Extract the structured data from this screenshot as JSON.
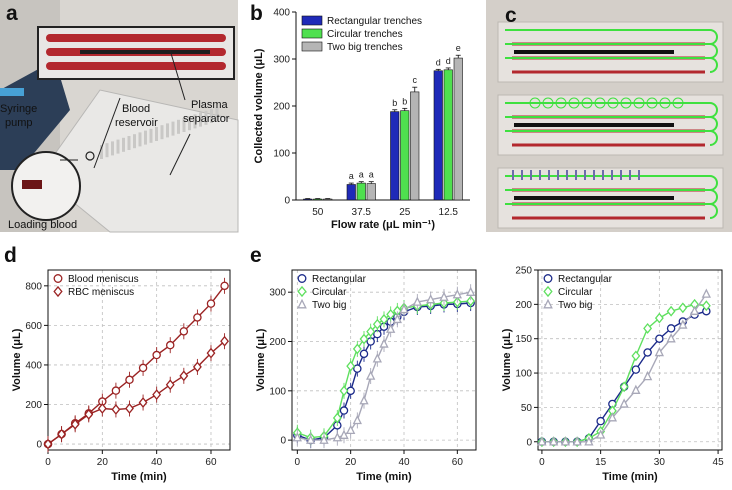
{
  "panels": {
    "a": "a",
    "b": "b",
    "c": "c",
    "d": "d",
    "e": "e"
  },
  "photo_a": {
    "labels": {
      "syringe_pump": [
        "Syringe",
        "pump"
      ],
      "blood_reservoir": [
        "Blood",
        "reservoir"
      ],
      "plasma_separator": [
        "Plasma",
        "separator"
      ],
      "loading_blood": "Loading blood"
    }
  },
  "colors": {
    "blue": "#1f2ab8",
    "green": "#4fe04f",
    "gray": "#b5b5b5",
    "darkred": "#9b2323",
    "navy": "#1b2a8a",
    "lightgreen": "#5fe05f",
    "lightgray": "#a8a8b8"
  },
  "chart_data": [
    {
      "id": "b",
      "type": "bar",
      "title": "",
      "xlabel": "Flow rate (μL min⁻¹)",
      "ylabel": "Collected volume (μL)",
      "ylim": [
        0,
        400
      ],
      "yticks": [
        "0",
        "100",
        "200",
        "300",
        "400"
      ],
      "categories": [
        "50",
        "37.5",
        "25",
        "12.5"
      ],
      "series": [
        {
          "name": "Rectangular trenches",
          "values": [
            2,
            33,
            188,
            275
          ],
          "errors": [
            1,
            3,
            4,
            3
          ],
          "letters": [
            "",
            "a",
            "b",
            "d"
          ]
        },
        {
          "name": "Circular trenches",
          "values": [
            2,
            36,
            190,
            277
          ],
          "errors": [
            1,
            3,
            5,
            4
          ],
          "letters": [
            "",
            "a",
            "b",
            "d"
          ]
        },
        {
          "name": "Two big trenches",
          "values": [
            2,
            35,
            230,
            302
          ],
          "errors": [
            1,
            4,
            10,
            6
          ],
          "letters": [
            "",
            "a",
            "c",
            "e"
          ]
        }
      ],
      "legend": "top-left"
    },
    {
      "id": "d",
      "type": "line",
      "xlabel": "Time (min)",
      "ylabel": "Volume (μL)",
      "xlim": [
        0,
        67
      ],
      "ylim": [
        -30,
        880
      ],
      "xticks": [
        "0",
        "20",
        "40",
        "60"
      ],
      "yticks": [
        "0",
        "200",
        "400",
        "600",
        "800"
      ],
      "series": [
        {
          "name": "Blood meniscus",
          "marker": "circle",
          "x": [
            0,
            5,
            10,
            15,
            20,
            25,
            30,
            35,
            40,
            45,
            50,
            55,
            60,
            65
          ],
          "y": [
            0,
            50,
            105,
            155,
            215,
            270,
            325,
            385,
            450,
            500,
            570,
            640,
            710,
            800
          ]
        },
        {
          "name": "RBC meniscus",
          "marker": "diamond",
          "x": [
            0,
            5,
            10,
            15,
            20,
            25,
            30,
            35,
            40,
            45,
            50,
            55,
            60,
            65
          ],
          "y": [
            0,
            50,
            100,
            150,
            180,
            175,
            180,
            210,
            250,
            300,
            345,
            390,
            460,
            520
          ]
        }
      ],
      "legend": "top-left"
    },
    {
      "id": "e1",
      "type": "scatter",
      "xlabel": "Time (min)",
      "ylabel": "Volume (μL)",
      "xlim": [
        -2,
        67
      ],
      "ylim": [
        -20,
        345
      ],
      "xticks": [
        "0",
        "20",
        "40",
        "60"
      ],
      "yticks": [
        "0",
        "100",
        "200",
        "300"
      ],
      "series": [
        {
          "name": "Rectangular",
          "marker": "circle",
          "x": [
            0,
            5,
            10,
            15,
            17.5,
            20,
            22.5,
            25,
            27.5,
            30,
            32.5,
            35,
            37.5,
            40,
            45,
            50,
            55,
            60,
            65
          ],
          "y": [
            10,
            0,
            5,
            30,
            60,
            100,
            145,
            175,
            200,
            215,
            230,
            240,
            250,
            260,
            270,
            272,
            275,
            276,
            278
          ]
        },
        {
          "name": "Circular",
          "marker": "diamond",
          "x": [
            0,
            5,
            10,
            15,
            17.5,
            20,
            22.5,
            25,
            27.5,
            30,
            32.5,
            35,
            37.5,
            40,
            45,
            50,
            55,
            60,
            65
          ],
          "y": [
            15,
            5,
            8,
            45,
            100,
            150,
            185,
            205,
            220,
            235,
            245,
            255,
            262,
            268,
            272,
            275,
            278,
            280,
            282
          ]
        },
        {
          "name": "Two big",
          "marker": "triangle",
          "x": [
            0,
            5,
            10,
            15,
            17.5,
            20,
            22.5,
            25,
            27.5,
            30,
            32.5,
            35,
            37.5,
            40,
            45,
            50,
            55,
            60,
            65
          ],
          "y": [
            5,
            0,
            0,
            5,
            10,
            20,
            40,
            80,
            130,
            165,
            195,
            225,
            245,
            265,
            280,
            285,
            290,
            295,
            300
          ]
        }
      ],
      "legend": "top-left"
    },
    {
      "id": "e2",
      "type": "scatter",
      "xlabel": "Time (min)",
      "ylabel": "Volume (μL)",
      "xlim": [
        -1,
        46
      ],
      "ylim": [
        -12,
        250
      ],
      "xticks": [
        "0",
        "15",
        "30",
        "45"
      ],
      "yticks": [
        "0",
        "50",
        "100",
        "150",
        "200",
        "250"
      ],
      "series": [
        {
          "name": "Rectangular",
          "marker": "circle",
          "x": [
            0,
            3,
            6,
            9,
            12,
            15,
            18,
            21,
            24,
            27,
            30,
            33,
            36,
            39,
            42
          ],
          "y": [
            0,
            0,
            0,
            0,
            5,
            30,
            55,
            80,
            105,
            130,
            150,
            165,
            175,
            185,
            190
          ]
        },
        {
          "name": "Circular",
          "marker": "diamond",
          "x": [
            0,
            3,
            6,
            9,
            12,
            15,
            18,
            21,
            24,
            27,
            30,
            33,
            36,
            39,
            42
          ],
          "y": [
            0,
            0,
            0,
            0,
            5,
            15,
            45,
            80,
            125,
            165,
            180,
            190,
            195,
            200,
            198
          ]
        },
        {
          "name": "Two big",
          "marker": "triangle",
          "x": [
            0,
            3,
            6,
            9,
            12,
            15,
            18,
            21,
            24,
            27,
            30,
            33,
            36,
            39,
            42
          ],
          "y": [
            0,
            0,
            0,
            0,
            0,
            10,
            35,
            55,
            75,
            95,
            130,
            150,
            170,
            190,
            215
          ]
        }
      ],
      "legend": "top-left"
    }
  ]
}
